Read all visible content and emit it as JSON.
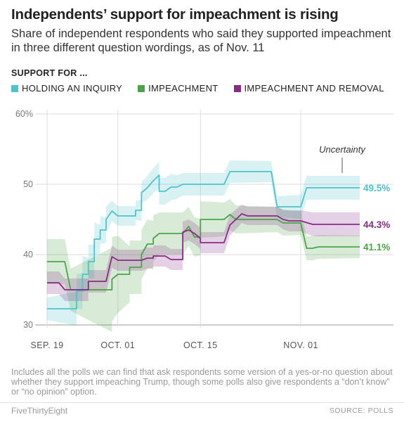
{
  "title": "Independents’ support for impeachment is rising",
  "subtitle": "Share of independent respondents who said they supported impeachment in three different question wordings, as of Nov. 11",
  "legend_heading": "SUPPORT FOR ...",
  "footnote": "Includes all the polls we can find that ask respondents some version of a yes-or-no question about whether they support impeaching Trump, though some polls also give respondents a “don’t know” or “no opinion” option.",
  "brand": "FiveThirtyEight",
  "source": "SOURCE: POLLS",
  "colors": {
    "inquiry": "#4fc3cd",
    "impeachment": "#4aa548",
    "removal": "#892c87",
    "grid": "#dedede",
    "axis": "#555555"
  },
  "chart_data": {
    "type": "line",
    "ylim": [
      30,
      60
    ],
    "yticks": [
      "60%",
      "50",
      "40",
      "30"
    ],
    "ytick_values": [
      60,
      50,
      40,
      30
    ],
    "x_start": "2019-09-19",
    "x_end": "2019-11-11",
    "xticks": [
      {
        "label": "SEP. 19",
        "date": "2019-09-19"
      },
      {
        "label": "OCT. 01",
        "date": "2019-10-01"
      },
      {
        "label": "OCT. 15",
        "date": "2019-10-15"
      },
      {
        "label": "NOV. 01",
        "date": "2019-11-01"
      }
    ],
    "annotation": "Uncertainty",
    "series": [
      {
        "name": "HOLDING AN INQUIRY",
        "key": "inquiry",
        "end_label": "49.5%",
        "points": [
          {
            "x": "2019-09-19",
            "y": 32.3
          },
          {
            "x": "2019-09-24",
            "y": 32.3
          },
          {
            "x": "2019-09-24",
            "y": 34.8
          },
          {
            "x": "2019-09-25",
            "y": 34.8
          },
          {
            "x": "2019-09-25",
            "y": 37.2
          },
          {
            "x": "2019-09-26",
            "y": 37.2
          },
          {
            "x": "2019-09-26",
            "y": 39.0
          },
          {
            "x": "2019-09-27",
            "y": 39.0
          },
          {
            "x": "2019-09-27",
            "y": 42.2
          },
          {
            "x": "2019-09-28",
            "y": 42.2
          },
          {
            "x": "2019-09-28",
            "y": 43.5
          },
          {
            "x": "2019-09-29",
            "y": 43.5
          },
          {
            "x": "2019-09-29",
            "y": 45.0
          },
          {
            "x": "2019-09-30",
            "y": 46.2
          },
          {
            "x": "2019-10-01",
            "y": 45.5
          },
          {
            "x": "2019-10-04",
            "y": 45.5
          },
          {
            "x": "2019-10-04",
            "y": 46.3
          },
          {
            "x": "2019-10-05",
            "y": 46.3
          },
          {
            "x": "2019-10-05",
            "y": 48.8
          },
          {
            "x": "2019-10-06",
            "y": 49.5
          },
          {
            "x": "2019-10-07",
            "y": 50.5
          },
          {
            "x": "2019-10-08",
            "y": 51.3
          },
          {
            "x": "2019-10-08",
            "y": 49.0
          },
          {
            "x": "2019-10-09",
            "y": 49.0
          },
          {
            "x": "2019-10-10",
            "y": 49.6
          },
          {
            "x": "2019-10-11",
            "y": 49.6
          },
          {
            "x": "2019-10-12",
            "y": 50.0
          },
          {
            "x": "2019-10-19",
            "y": 50.0
          },
          {
            "x": "2019-10-20",
            "y": 51.8
          },
          {
            "x": "2019-10-27",
            "y": 51.8
          },
          {
            "x": "2019-10-28",
            "y": 46.8
          },
          {
            "x": "2019-11-01",
            "y": 46.8
          },
          {
            "x": "2019-11-02",
            "y": 49.5
          },
          {
            "x": "2019-11-11",
            "y": 49.5
          }
        ],
        "band": [
          1.6,
          2.4,
          2.4,
          2.6,
          2.6,
          2.4,
          2.4,
          2.4,
          2.4,
          2.0,
          2.0,
          1.8,
          1.8,
          1.5,
          1.4,
          1.4,
          1.4,
          1.5,
          1.5,
          1.7,
          1.8,
          1.9,
          1.9,
          1.9,
          1.9,
          1.7,
          1.6,
          1.6,
          1.6,
          1.5,
          1.5,
          1.7,
          1.7,
          1.7
        ]
      },
      {
        "name": "IMPEACHMENT",
        "key": "impeachment",
        "end_label": "41.1%",
        "points": [
          {
            "x": "2019-09-19",
            "y": 39.0
          },
          {
            "x": "2019-09-22",
            "y": 39.0
          },
          {
            "x": "2019-09-23",
            "y": 35.0
          },
          {
            "x": "2019-09-30",
            "y": 35.0
          },
          {
            "x": "2019-09-30",
            "y": 36.5
          },
          {
            "x": "2019-10-01",
            "y": 37.2
          },
          {
            "x": "2019-10-03",
            "y": 37.2
          },
          {
            "x": "2019-10-03",
            "y": 38.2
          },
          {
            "x": "2019-10-05",
            "y": 38.2
          },
          {
            "x": "2019-10-05",
            "y": 40.0
          },
          {
            "x": "2019-10-06",
            "y": 41.5
          },
          {
            "x": "2019-10-07",
            "y": 41.5
          },
          {
            "x": "2019-10-07",
            "y": 42.3
          },
          {
            "x": "2019-10-08",
            "y": 43.0
          },
          {
            "x": "2019-10-12",
            "y": 43.0
          },
          {
            "x": "2019-10-13",
            "y": 44.0
          },
          {
            "x": "2019-10-14",
            "y": 42.5
          },
          {
            "x": "2019-10-15",
            "y": 42.5
          },
          {
            "x": "2019-10-15",
            "y": 45.0
          },
          {
            "x": "2019-10-19",
            "y": 45.0
          },
          {
            "x": "2019-10-20",
            "y": 45.7
          },
          {
            "x": "2019-10-21",
            "y": 45.0
          },
          {
            "x": "2019-10-28",
            "y": 45.0
          },
          {
            "x": "2019-10-29",
            "y": 44.5
          },
          {
            "x": "2019-11-01",
            "y": 44.5
          },
          {
            "x": "2019-11-02",
            "y": 40.9
          },
          {
            "x": "2019-11-03",
            "y": 40.9
          },
          {
            "x": "2019-11-04",
            "y": 41.1
          },
          {
            "x": "2019-11-11",
            "y": 41.1
          }
        ],
        "band": [
          3.2,
          3.2,
          3.0,
          6.0,
          6.0,
          5.5,
          4.0,
          3.8,
          3.8,
          3.5,
          3.5,
          3.3,
          3.3,
          3.0,
          3.0,
          2.8,
          2.8,
          2.6,
          2.6,
          2.4,
          2.2,
          2.0,
          1.8,
          1.8,
          1.7,
          1.7,
          1.7,
          1.7,
          1.6
        ]
      },
      {
        "name": "IMPEACHMENT AND REMOVAL",
        "key": "removal",
        "end_label": "44.3%",
        "points": [
          {
            "x": "2019-09-19",
            "y": 36.0
          },
          {
            "x": "2019-09-21",
            "y": 36.0
          },
          {
            "x": "2019-09-22",
            "y": 35.0
          },
          {
            "x": "2019-09-26",
            "y": 35.0
          },
          {
            "x": "2019-09-26",
            "y": 36.2
          },
          {
            "x": "2019-09-29",
            "y": 36.2
          },
          {
            "x": "2019-09-30",
            "y": 39.7
          },
          {
            "x": "2019-10-01",
            "y": 39.2
          },
          {
            "x": "2019-10-05",
            "y": 39.2
          },
          {
            "x": "2019-10-06",
            "y": 39.5
          },
          {
            "x": "2019-10-07",
            "y": 39.5
          },
          {
            "x": "2019-10-07",
            "y": 39.8
          },
          {
            "x": "2019-10-09",
            "y": 39.8
          },
          {
            "x": "2019-10-10",
            "y": 39.3
          },
          {
            "x": "2019-10-12",
            "y": 39.3
          },
          {
            "x": "2019-10-12",
            "y": 43.2
          },
          {
            "x": "2019-10-13",
            "y": 43.5
          },
          {
            "x": "2019-10-14",
            "y": 43.0
          },
          {
            "x": "2019-10-15",
            "y": 42.3
          },
          {
            "x": "2019-10-15",
            "y": 41.7
          },
          {
            "x": "2019-10-19",
            "y": 41.7
          },
          {
            "x": "2019-10-20",
            "y": 44.2
          },
          {
            "x": "2019-10-22",
            "y": 45.8
          },
          {
            "x": "2019-10-23",
            "y": 45.5
          },
          {
            "x": "2019-10-28",
            "y": 45.5
          },
          {
            "x": "2019-10-29",
            "y": 45.0
          },
          {
            "x": "2019-10-30",
            "y": 44.8
          },
          {
            "x": "2019-11-01",
            "y": 44.8
          },
          {
            "x": "2019-11-03",
            "y": 44.3
          },
          {
            "x": "2019-11-11",
            "y": 44.3
          }
        ],
        "band": [
          1.6,
          1.6,
          1.6,
          1.6,
          1.6,
          1.6,
          1.6,
          1.5,
          1.5,
          1.5,
          1.5,
          1.5,
          1.5,
          1.5,
          1.5,
          1.5,
          1.5,
          1.5,
          1.5,
          1.5,
          1.5,
          1.5,
          1.3,
          1.3,
          1.3,
          1.4,
          1.5,
          1.5,
          1.7,
          1.7
        ]
      }
    ]
  }
}
